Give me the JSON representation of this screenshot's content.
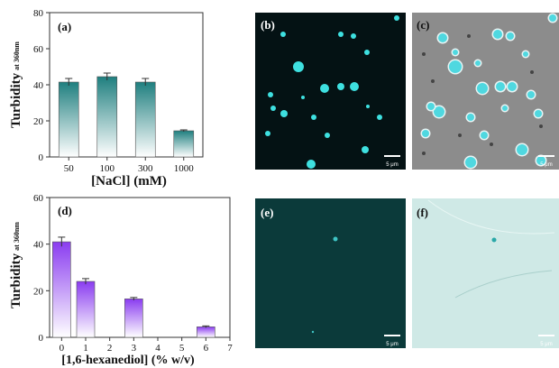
{
  "chart_data": [
    {
      "type": "bar",
      "panel_label": "(a)",
      "categories": [
        "50",
        "100",
        "300",
        "1000"
      ],
      "values": [
        41.5,
        44.5,
        41.5,
        14.5
      ],
      "errors": [
        2.0,
        2.0,
        2.0,
        0.5
      ],
      "ylim": [
        0,
        80
      ],
      "yticks": [
        0,
        20,
        40,
        60,
        80
      ],
      "ylabel": "Turbidity",
      "ylabel_sub": "at 360nm",
      "xlabel": "[NaCl] (mM)",
      "bar_color_top": "#1f7f7f",
      "bar_color_bottom": "#ffffff"
    },
    {
      "type": "bar",
      "panel_label": "(d)",
      "x": [
        0,
        1,
        3,
        6
      ],
      "values": [
        41,
        24,
        16.5,
        4.5
      ],
      "errors": [
        2.0,
        1.2,
        0.6,
        0.4
      ],
      "xlim": [
        -0.5,
        7
      ],
      "xticks": [
        "0",
        "1",
        "2",
        "3",
        "4",
        "5",
        "6",
        "7"
      ],
      "ylim": [
        0,
        60
      ],
      "yticks": [
        0,
        20,
        40,
        60
      ],
      "ylabel": "Turbidity",
      "ylabel_sub": "at 360nm",
      "xlabel": "[1,6-hexanediol] (% w/v)",
      "bar_color_top": "#8a3cf0",
      "bar_color_bottom": "#ffffff"
    }
  ],
  "images": {
    "b": {
      "label": "(b)",
      "scale": "5 μm",
      "bg": "#041214",
      "dot": "#3ee0e0"
    },
    "c": {
      "label": "(c)",
      "scale": "5 μm",
      "bg": "#8c8c8c",
      "dot": "#4fd8e0"
    },
    "e": {
      "label": "(e)",
      "scale": "5 μm",
      "bg": "#0b3a3a",
      "dot": "#3fc4c4"
    },
    "f": {
      "label": "(f)",
      "scale": "5 μm",
      "bg": "#cfe9e6",
      "dot": "#2aa8a8"
    }
  }
}
